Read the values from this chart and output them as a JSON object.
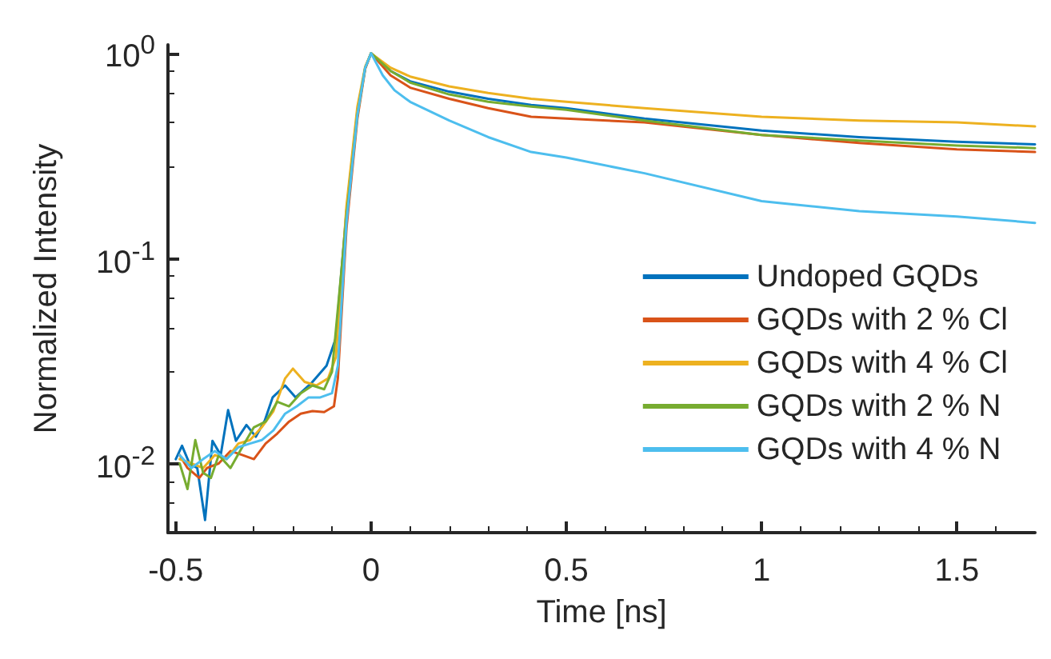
{
  "chart_data": {
    "type": "line",
    "xlabel": "Time [ns]",
    "ylabel": "Normalized Intensity",
    "log": "y",
    "grid": false,
    "legend": "bottom right",
    "marker": "none",
    "line_style": "solid",
    "xlim": [
      -0.52,
      1.7
    ],
    "xticks": [
      -0.5,
      0,
      0.5,
      1,
      1.5
    ],
    "ylim": [
      0.0046,
      1.1
    ],
    "yticks": [
      {
        "value": 0.01,
        "label": "10$^{-2}$"
      },
      {
        "value": 0.1,
        "label": "10$^{-1}$"
      },
      {
        "value": 1,
        "label": "10$^{0}$"
      }
    ],
    "series": [
      {
        "name": "Undoped GQDs",
        "color": "#0072bd",
        "x": [
          -0.5,
          -0.484,
          -0.465,
          -0.445,
          -0.425,
          -0.406,
          -0.385,
          -0.366,
          -0.346,
          -0.319,
          -0.295,
          -0.272,
          -0.252,
          -0.22,
          -0.193,
          -0.154,
          -0.114,
          -0.09,
          -0.063,
          -0.035,
          -0.015,
          0,
          0.05,
          0.1,
          0.2,
          0.3,
          0.41,
          0.5,
          0.7,
          1,
          1.25,
          1.5,
          1.7
        ],
        "values": [
          0.0105,
          0.0122,
          0.01,
          0.0095,
          0.0053,
          0.0129,
          0.011,
          0.0182,
          0.0129,
          0.0154,
          0.0135,
          0.0162,
          0.021,
          0.024,
          0.021,
          0.0245,
          0.03,
          0.041,
          0.17,
          0.52,
          0.85,
          1,
          0.82,
          0.73,
          0.65,
          0.6,
          0.56,
          0.54,
          0.48,
          0.42,
          0.39,
          0.37,
          0.36
        ]
      },
      {
        "name": "GQDs with 2 % Cl",
        "color": "#d95319",
        "x": [
          -0.49,
          -0.47,
          -0.44,
          -0.42,
          -0.39,
          -0.36,
          -0.33,
          -0.3,
          -0.27,
          -0.24,
          -0.21,
          -0.18,
          -0.15,
          -0.12,
          -0.095,
          -0.085,
          -0.063,
          -0.035,
          -0.015,
          0,
          0.05,
          0.1,
          0.2,
          0.3,
          0.41,
          0.5,
          0.7,
          1,
          1.25,
          1.5,
          1.7
        ],
        "values": [
          0.011,
          0.0095,
          0.0085,
          0.0095,
          0.01,
          0.0115,
          0.011,
          0.0105,
          0.0125,
          0.014,
          0.016,
          0.0175,
          0.018,
          0.0178,
          0.019,
          0.026,
          0.14,
          0.48,
          0.84,
          1,
          0.78,
          0.68,
          0.6,
          0.54,
          0.49,
          0.48,
          0.46,
          0.4,
          0.365,
          0.34,
          0.33
        ]
      },
      {
        "name": "GQDs with 4 % Cl",
        "color": "#edb120",
        "x": [
          -0.49,
          -0.46,
          -0.43,
          -0.4,
          -0.37,
          -0.34,
          -0.31,
          -0.28,
          -0.25,
          -0.22,
          -0.2,
          -0.17,
          -0.14,
          -0.11,
          -0.09,
          -0.063,
          -0.035,
          -0.015,
          0,
          0.05,
          0.1,
          0.2,
          0.3,
          0.41,
          0.5,
          0.7,
          1,
          1.25,
          1.5,
          1.7
        ],
        "values": [
          0.0105,
          0.01,
          0.0095,
          0.011,
          0.0105,
          0.0125,
          0.013,
          0.015,
          0.018,
          0.026,
          0.029,
          0.025,
          0.024,
          0.026,
          0.033,
          0.18,
          0.55,
          0.86,
          1,
          0.85,
          0.77,
          0.69,
          0.64,
          0.6,
          0.58,
          0.54,
          0.49,
          0.47,
          0.46,
          0.44
        ]
      },
      {
        "name": "GQDs with 2 % N",
        "color": "#77ac30",
        "x": [
          -0.49,
          -0.47,
          -0.45,
          -0.43,
          -0.41,
          -0.39,
          -0.36,
          -0.33,
          -0.3,
          -0.27,
          -0.24,
          -0.21,
          -0.18,
          -0.15,
          -0.12,
          -0.1,
          -0.063,
          -0.035,
          -0.015,
          0,
          0.05,
          0.1,
          0.2,
          0.3,
          0.41,
          0.5,
          0.7,
          1,
          1.25,
          1.5,
          1.7
        ],
        "values": [
          0.01,
          0.0075,
          0.013,
          0.009,
          0.0085,
          0.011,
          0.0095,
          0.012,
          0.015,
          0.016,
          0.02,
          0.019,
          0.022,
          0.024,
          0.023,
          0.028,
          0.16,
          0.5,
          0.85,
          1,
          0.82,
          0.72,
          0.63,
          0.58,
          0.55,
          0.53,
          0.47,
          0.4,
          0.375,
          0.355,
          0.345
        ]
      },
      {
        "name": "GQDs with 4 % N",
        "color": "#4dbeee",
        "x": [
          -0.49,
          -0.46,
          -0.43,
          -0.4,
          -0.37,
          -0.34,
          -0.31,
          -0.28,
          -0.25,
          -0.22,
          -0.19,
          -0.16,
          -0.13,
          -0.1,
          -0.085,
          -0.063,
          -0.035,
          -0.015,
          0,
          0.03,
          0.06,
          0.1,
          0.2,
          0.3,
          0.41,
          0.5,
          0.7,
          1,
          1.25,
          1.5,
          1.7
        ],
        "values": [
          0.011,
          0.0095,
          0.0105,
          0.0115,
          0.0105,
          0.012,
          0.0125,
          0.013,
          0.0145,
          0.0175,
          0.019,
          0.021,
          0.021,
          0.022,
          0.03,
          0.15,
          0.5,
          0.85,
          1,
          0.78,
          0.66,
          0.58,
          0.47,
          0.39,
          0.33,
          0.31,
          0.26,
          0.19,
          0.17,
          0.16,
          0.149
        ]
      }
    ]
  }
}
